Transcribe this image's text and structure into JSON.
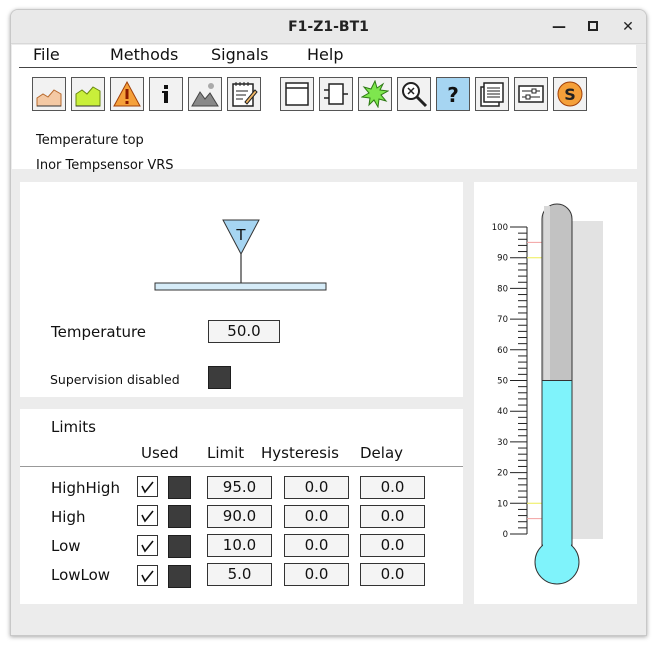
{
  "window": {
    "title": "F1-Z1-BT1",
    "buttons": {
      "minimize": "—",
      "maximize": "▢",
      "close": "✕"
    }
  },
  "menu": [
    {
      "label": "File"
    },
    {
      "label": "Methods"
    },
    {
      "label": "Signals"
    },
    {
      "label": "Help"
    }
  ],
  "toolbar": {
    "buttons": [
      {
        "icon": "trend-icon"
      },
      {
        "icon": "fast-trend-icon"
      },
      {
        "icon": "alarm-warning-icon"
      },
      {
        "icon": "info-icon"
      },
      {
        "icon": "graphics-icon"
      },
      {
        "icon": "note-icon"
      },
      {
        "icon": "window-icon"
      },
      {
        "icon": "object-icon"
      },
      {
        "icon": "crossreference-icon"
      },
      {
        "icon": "search-icon"
      },
      {
        "icon": "help-icon"
      },
      {
        "icon": "datasheet-icon"
      },
      {
        "icon": "rtt-icon"
      },
      {
        "icon": "simulate-icon"
      }
    ]
  },
  "object": {
    "description": "Temperature top",
    "specification": "Inor Tempsensor VRS"
  },
  "sensor": {
    "symbol_letter": "T",
    "temperature_label": "Temperature",
    "temperature_value": "50.0",
    "supervision_label": "Supervision disabled"
  },
  "limits": {
    "title": "Limits",
    "headers": {
      "used": "Used",
      "limit": "Limit",
      "hysteresis": "Hysteresis",
      "delay": "Delay"
    },
    "rows": [
      {
        "name": "HighHigh",
        "used": true,
        "limit": "95.0",
        "hysteresis": "0.0",
        "delay": "0.0"
      },
      {
        "name": "High",
        "used": true,
        "limit": "90.0",
        "hysteresis": "0.0",
        "delay": "0.0"
      },
      {
        "name": "Low",
        "used": true,
        "limit": "10.0",
        "hysteresis": "0.0",
        "delay": "0.0"
      },
      {
        "name": "LowLow",
        "used": true,
        "limit": "5.0",
        "hysteresis": "0.0",
        "delay": "0.0"
      }
    ]
  },
  "thermometer": {
    "min": 0,
    "max": 100,
    "value": 50,
    "tick_labels": [
      "100",
      "90",
      "80",
      "70",
      "60",
      "50",
      "40",
      "30",
      "20",
      "10",
      "0"
    ],
    "limit_markers": [
      95,
      90,
      10,
      5
    ],
    "colors": {
      "fill": "#7ff3fb",
      "tube": "#c2c2c2",
      "highhigh_line": "#f2a0a0",
      "high_line": "#eeee55"
    }
  },
  "colors": {
    "accent": "#a6d5f2",
    "indicator_dark": "#3c3c3c"
  }
}
